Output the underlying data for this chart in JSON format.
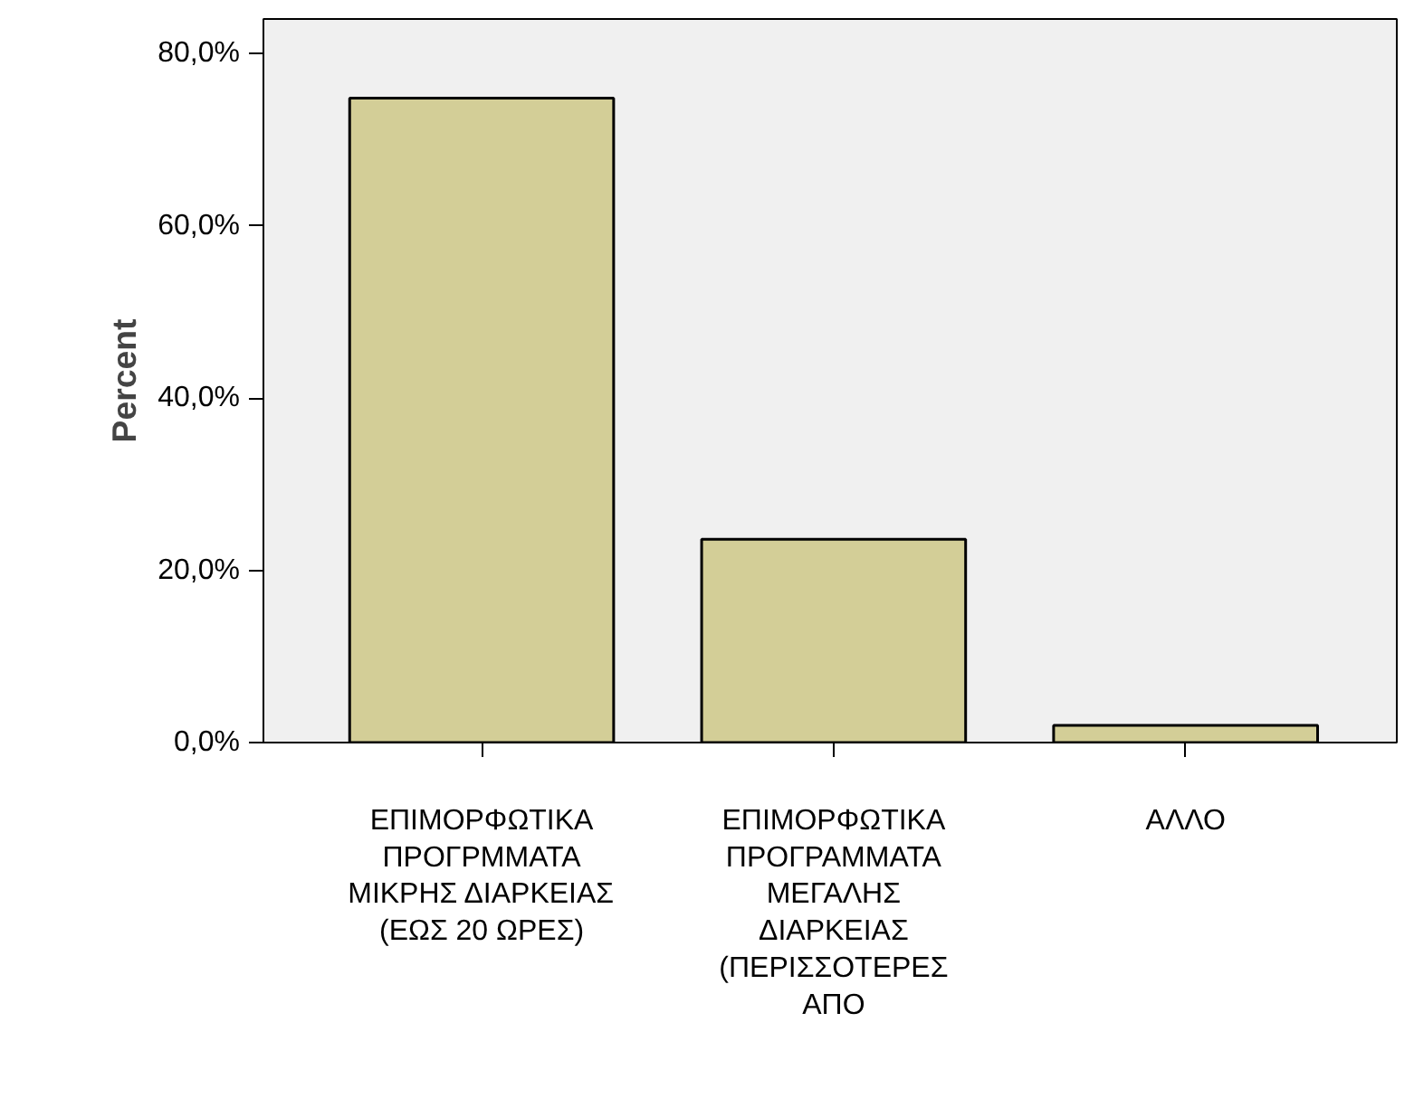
{
  "chart_data": {
    "type": "bar",
    "ylabel": "Percent",
    "categories": [
      "ΕΠΙΜΟΡΦΩΤΙΚΑ\nΠΡΟΓΡΜΜΑΤΑ\nΜΙΚΡΗΣ ΔΙΑΡΚΕΙΑΣ\n(ΕΩΣ 20 ΩΡΕΣ)",
      "ΕΠΙΜΟΡΦΩΤΙΚΑ\nΠΡΟΓΡΑΜΜΑΤΑ\nΜΕΓΑΛΗΣ\nΔΙΑΡΚΕΙΑΣ\n(ΠΕΡΙΣΣΟΤΕΡΕΣ\nΑΠΟ",
      "ΑΛΛΟ"
    ],
    "values": [
      74.8,
      23.6,
      2.0
    ],
    "color": "#d3ce97",
    "ylim": [
      0,
      84
    ],
    "yticks": [
      {
        "value": 0,
        "label": "0,0%"
      },
      {
        "value": 20,
        "label": "20,0%"
      },
      {
        "value": 40,
        "label": "40,0%"
      },
      {
        "value": 60,
        "label": "60,0%"
      },
      {
        "value": 80,
        "label": "80,0%"
      }
    ],
    "grid": false
  }
}
